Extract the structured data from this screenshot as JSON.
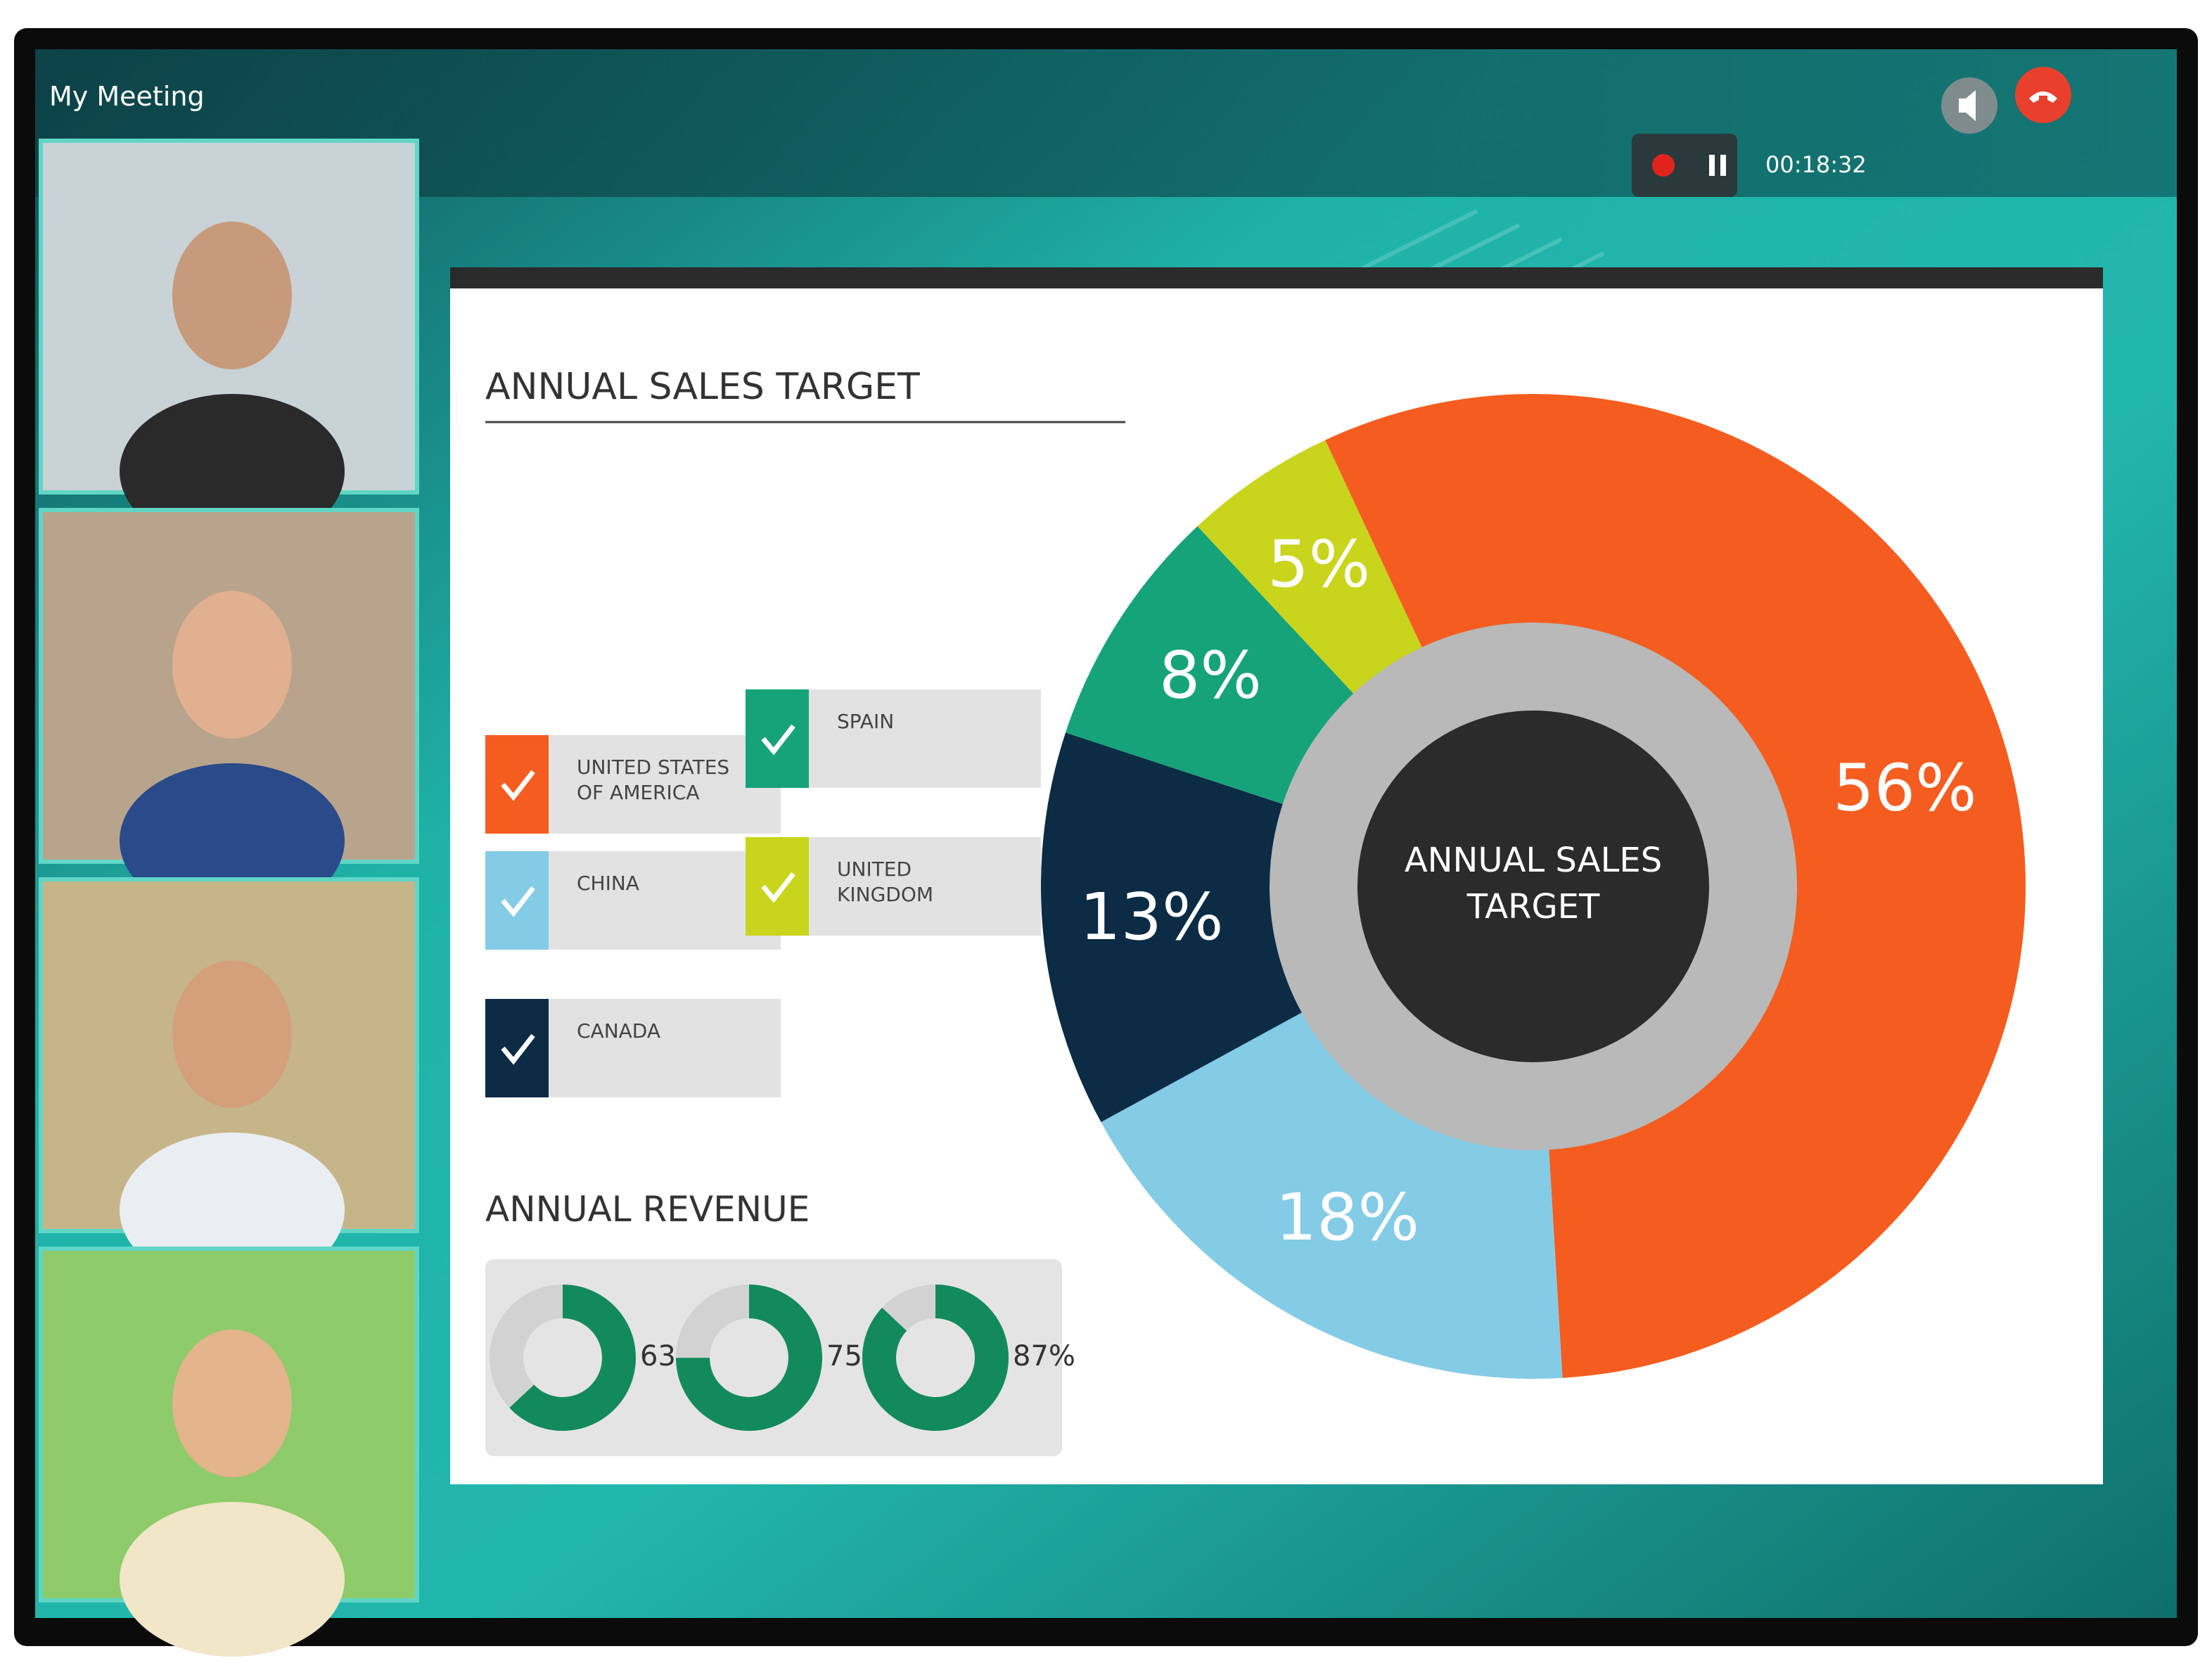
{
  "header": {
    "title": "My Meeting"
  },
  "controls": {
    "timer": "00:18:32"
  },
  "chart_data": [
    {
      "type": "pie",
      "title": "ANNUAL SALES TARGET",
      "center_label": "ANNUAL SALES TARGET",
      "categories": [
        "UNITED STATES OF AMERICA",
        "CHINA",
        "CANADA",
        "SPAIN",
        "UNITED KINGDOM"
      ],
      "values": [
        56,
        18,
        13,
        8,
        5
      ],
      "value_labels": [
        "56%",
        "18%",
        "13%",
        "8%",
        "5%"
      ],
      "colors": [
        "#f45d1f",
        "#84cbe6",
        "#0c2b45",
        "#16a37a",
        "#c9d41c"
      ]
    },
    {
      "type": "donut",
      "title": "ANNUAL REVENUE",
      "values": [
        63,
        75,
        87
      ],
      "value_labels": [
        "63%",
        "75%",
        "87%"
      ],
      "color": "#138a5e"
    }
  ]
}
